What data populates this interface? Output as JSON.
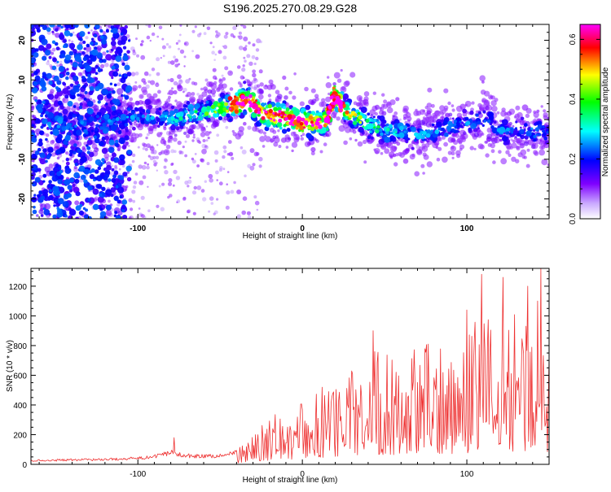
{
  "title": "S196.2025.270.08.29.G28",
  "chart_data": [
    {
      "type": "heatmap",
      "title": "S196.2025.270.08.29.G28",
      "xlabel": "Height of straight line (km)",
      "ylabel": "Frequency (Hz)",
      "xlim": [
        -165,
        150
      ],
      "ylim": [
        -25,
        24
      ],
      "x_ticks": [
        -100,
        0,
        100
      ],
      "y_ticks": [
        -20,
        -10,
        0,
        10,
        20
      ],
      "colorbar": {
        "label": "Normalized spectral amplitude",
        "range": [
          0.0,
          0.65
        ],
        "ticks": [
          "0.0",
          "0.2",
          "0.4",
          "0.6"
        ],
        "colormap": [
          "#ffffff",
          "#7f00ff",
          "#0000ff",
          "#00ffff",
          "#00ff00",
          "#ffff00",
          "#ff0000",
          "#ff00ff"
        ]
      },
      "ridge": {
        "x": [
          -125,
          -110,
          -100,
          -90,
          -80,
          -70,
          -60,
          -50,
          -40,
          -35,
          -30,
          -25,
          -20,
          -10,
          0,
          10,
          15,
          18,
          20,
          25,
          30,
          40,
          50,
          60,
          70,
          80,
          90,
          100,
          110,
          115,
          120,
          130,
          140,
          150
        ],
        "y": [
          -1,
          0,
          1,
          1,
          0,
          1,
          2,
          3,
          4,
          5,
          4,
          2,
          1,
          0.5,
          -0.5,
          -1,
          0,
          5,
          6,
          3,
          1,
          -1,
          -3,
          -3,
          -4,
          -3,
          -2,
          -1,
          0,
          -1,
          -3,
          -3,
          -3,
          -3
        ]
      }
    },
    {
      "type": "line",
      "xlabel": "Height of straight line (km)",
      "ylabel": "SNR (10 * v/v)",
      "xlim": [
        -165,
        150
      ],
      "ylim": [
        0,
        1320
      ],
      "x_ticks": [
        -100,
        0,
        100
      ],
      "y_ticks": [
        0,
        200,
        400,
        600,
        800,
        1000,
        1200
      ],
      "color": "#ee3030",
      "envelope": {
        "x": [
          -165,
          -120,
          -100,
          -90,
          -80,
          -70,
          -60,
          -50,
          -40,
          -30,
          -20,
          -10,
          0,
          10,
          20,
          30,
          40,
          50,
          60,
          70,
          80,
          90,
          100,
          110,
          120,
          130,
          140,
          145,
          150
        ],
        "y": [
          35,
          45,
          55,
          70,
          110,
          80,
          75,
          80,
          110,
          220,
          330,
          400,
          460,
          520,
          580,
          720,
          830,
          820,
          780,
          850,
          870,
          880,
          950,
          1150,
          1080,
          1100,
          1150,
          1310,
          720
        ]
      },
      "peaks": [
        {
          "x": -78,
          "y": 180
        },
        {
          "x": 12,
          "y": 520
        },
        {
          "x": 43,
          "y": 900
        },
        {
          "x": 100,
          "y": 1040
        },
        {
          "x": 109,
          "y": 1280
        },
        {
          "x": 122,
          "y": 1260
        },
        {
          "x": 137,
          "y": 1200
        },
        {
          "x": 143,
          "y": 1100
        },
        {
          "x": 145,
          "y": 1320
        },
        {
          "x": 150,
          "y": 720
        }
      ]
    }
  ]
}
